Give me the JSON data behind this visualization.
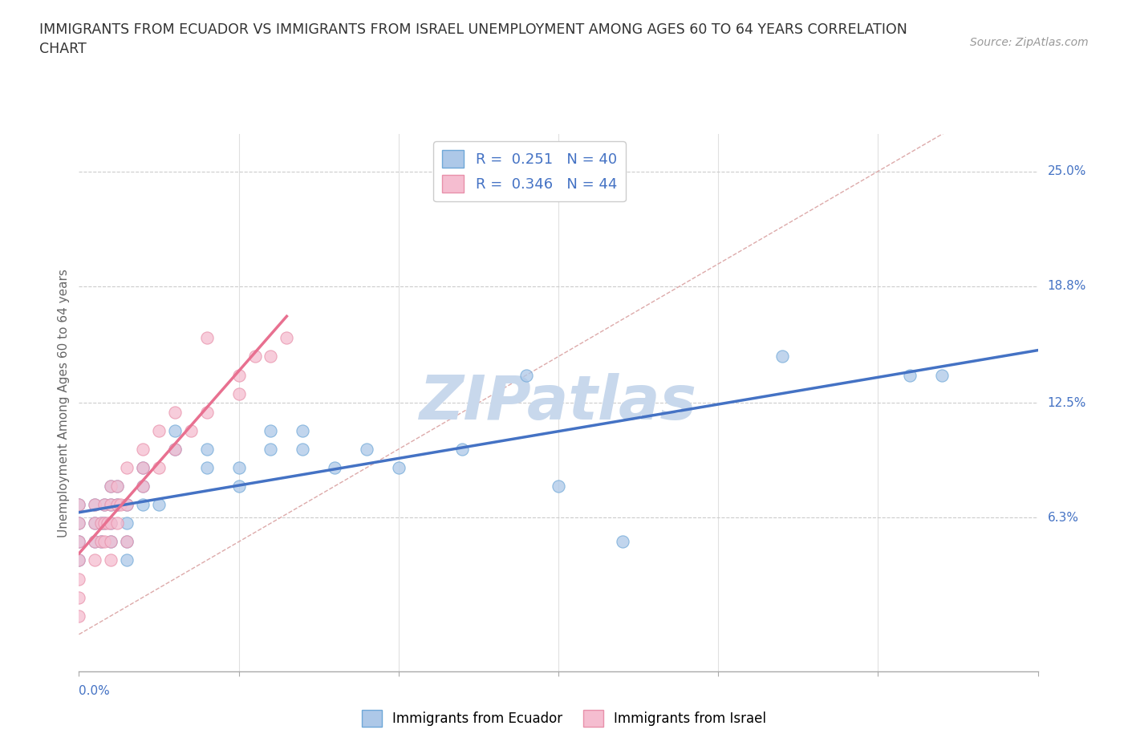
{
  "title": "IMMIGRANTS FROM ECUADOR VS IMMIGRANTS FROM ISRAEL UNEMPLOYMENT AMONG AGES 60 TO 64 YEARS CORRELATION\nCHART",
  "source_text": "Source: ZipAtlas.com",
  "ylabel": "Unemployment Among Ages 60 to 64 years",
  "xmin": 0.0,
  "xmax": 0.3,
  "ymin": -0.02,
  "ymax": 0.27,
  "y_tick_labels_right": [
    "6.3%",
    "12.5%",
    "18.8%",
    "25.0%"
  ],
  "y_tick_values_right": [
    0.063,
    0.125,
    0.188,
    0.25
  ],
  "ecuador_color": "#adc8e8",
  "ecuador_edge": "#6fa8d8",
  "israel_color": "#f5bdd0",
  "israel_edge": "#e890aa",
  "ecuador_line_color": "#4472c4",
  "israel_line_color": "#e87090",
  "diagonal_color": "#ddaaaa",
  "watermark_color": "#c8d8ec",
  "ecuador_scatter_x": [
    0.0,
    0.0,
    0.0,
    0.0,
    0.005,
    0.005,
    0.005,
    0.007,
    0.007,
    0.008,
    0.008,
    0.01,
    0.01,
    0.01,
    0.01,
    0.012,
    0.012,
    0.015,
    0.015,
    0.015,
    0.015,
    0.02,
    0.02,
    0.02,
    0.025,
    0.03,
    0.03,
    0.04,
    0.04,
    0.05,
    0.05,
    0.06,
    0.06,
    0.07,
    0.07,
    0.08,
    0.09,
    0.1,
    0.12,
    0.14,
    0.15,
    0.17,
    0.22,
    0.26,
    0.27
  ],
  "ecuador_scatter_y": [
    0.04,
    0.05,
    0.06,
    0.07,
    0.06,
    0.07,
    0.05,
    0.06,
    0.05,
    0.07,
    0.06,
    0.07,
    0.08,
    0.06,
    0.05,
    0.07,
    0.08,
    0.07,
    0.06,
    0.05,
    0.04,
    0.09,
    0.08,
    0.07,
    0.07,
    0.1,
    0.11,
    0.09,
    0.1,
    0.09,
    0.08,
    0.1,
    0.11,
    0.1,
    0.11,
    0.09,
    0.1,
    0.09,
    0.1,
    0.14,
    0.08,
    0.05,
    0.15,
    0.14,
    0.14
  ],
  "israel_scatter_x": [
    0.0,
    0.0,
    0.0,
    0.0,
    0.0,
    0.0,
    0.0,
    0.005,
    0.005,
    0.005,
    0.005,
    0.007,
    0.007,
    0.008,
    0.008,
    0.008,
    0.009,
    0.01,
    0.01,
    0.01,
    0.01,
    0.01,
    0.012,
    0.012,
    0.012,
    0.013,
    0.015,
    0.015,
    0.015,
    0.02,
    0.02,
    0.02,
    0.025,
    0.025,
    0.03,
    0.03,
    0.035,
    0.04,
    0.04,
    0.05,
    0.05,
    0.055,
    0.06,
    0.065
  ],
  "israel_scatter_y": [
    0.04,
    0.05,
    0.06,
    0.07,
    0.03,
    0.02,
    0.01,
    0.05,
    0.06,
    0.07,
    0.04,
    0.06,
    0.05,
    0.07,
    0.06,
    0.05,
    0.06,
    0.07,
    0.08,
    0.06,
    0.05,
    0.04,
    0.07,
    0.06,
    0.08,
    0.07,
    0.09,
    0.07,
    0.05,
    0.09,
    0.08,
    0.1,
    0.11,
    0.09,
    0.1,
    0.12,
    0.11,
    0.12,
    0.16,
    0.14,
    0.13,
    0.15,
    0.15,
    0.16
  ]
}
